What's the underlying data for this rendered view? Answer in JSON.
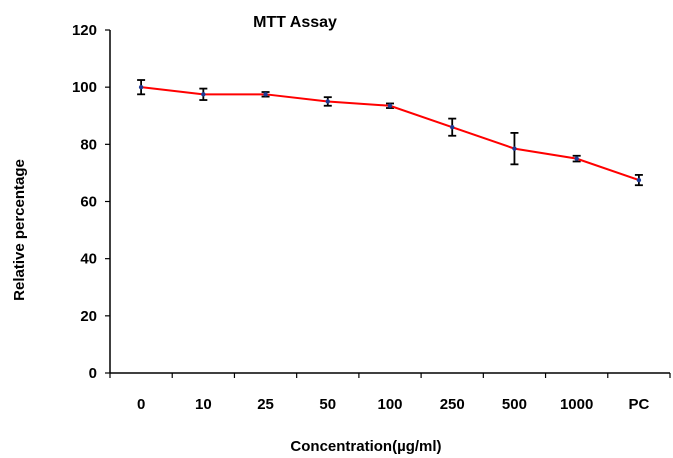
{
  "chart_data": {
    "type": "line",
    "title": "MTT Assay",
    "xlabel": "Concentration(µg/ml)",
    "ylabel": "Relative percentage",
    "categories": [
      "0",
      "10",
      "25",
      "50",
      "100",
      "250",
      "500",
      "1000",
      "PC"
    ],
    "series": [
      {
        "values": [
          100,
          97.5,
          97.5,
          95,
          93.5,
          86,
          78.5,
          75,
          67.5
        ],
        "errors": [
          2.5,
          2,
          0.8,
          1.5,
          0.8,
          3,
          5.5,
          1,
          1.8
        ],
        "color": "#ff0000"
      }
    ],
    "ylim": [
      0,
      120
    ],
    "yticks": [
      0,
      20,
      40,
      60,
      80,
      100,
      120
    ],
    "grid": false,
    "legend": "none",
    "marker_color": "#1f3a93",
    "errorbar_color": "#000000",
    "axis_color": "#000000"
  }
}
